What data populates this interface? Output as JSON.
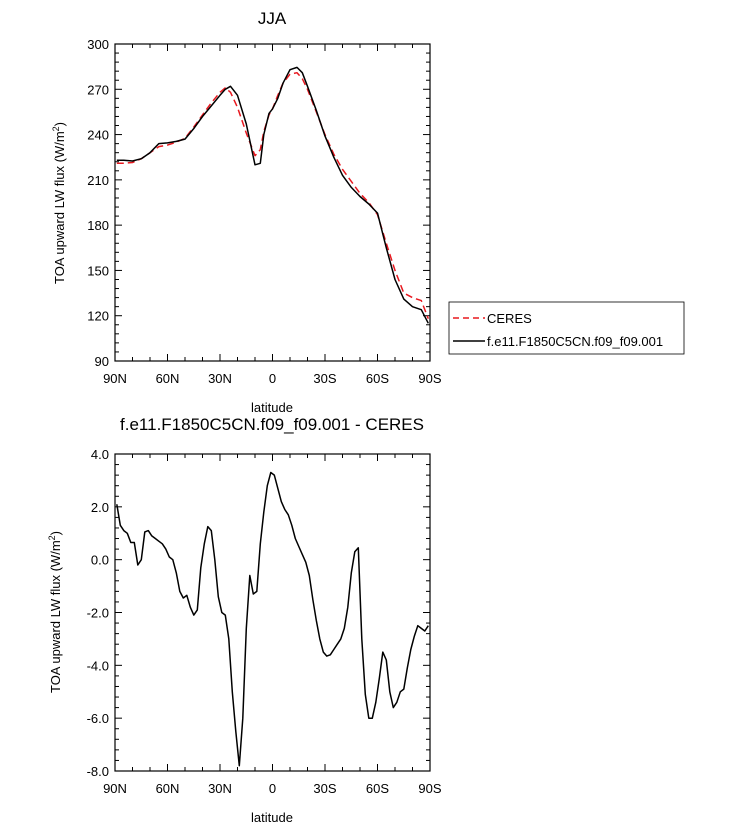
{
  "chart_data": [
    {
      "type": "line",
      "title": "JJA",
      "xlabel": "latitude",
      "ylabel": "TOA upward LW flux (W/m",
      "ylabel_sup": "2",
      "ylabel_close": ")",
      "ylim": [
        90,
        300
      ],
      "yticks": [
        90,
        120,
        150,
        180,
        210,
        240,
        270,
        300
      ],
      "ytick_labels": [
        "90",
        "120",
        "150",
        "180",
        "210",
        "240",
        "270",
        "300"
      ],
      "xlim": [
        90,
        -90
      ],
      "xticks": [
        90,
        60,
        30,
        0,
        -30,
        -60,
        -90
      ],
      "xtick_labels": [
        "90N",
        "60N",
        "30N",
        "0",
        "30S",
        "60S",
        "90S"
      ],
      "legend": {
        "placement": "right"
      },
      "series": [
        {
          "name": "CERES",
          "color": "#e8181f",
          "dash": "dashed",
          "x": [
            89,
            85,
            80,
            75,
            70,
            65,
            60,
            55,
            50,
            45,
            40,
            35,
            30,
            27,
            24,
            20,
            15,
            10,
            7,
            5,
            2,
            0,
            -3,
            -6,
            -10,
            -14,
            -17,
            -20,
            -25,
            -30,
            -35,
            -40,
            -45,
            -50,
            -55,
            -60,
            -65,
            -70,
            -75,
            -80,
            -85,
            -89
          ],
          "values": [
            221,
            221,
            221.5,
            224,
            228,
            232,
            233,
            235,
            237.5,
            245,
            253,
            261,
            268,
            271,
            268,
            258,
            241,
            226,
            230,
            242,
            253,
            257,
            266,
            274,
            280,
            281,
            277,
            270,
            255,
            240,
            227,
            217,
            209,
            201,
            195,
            187,
            168,
            150,
            135,
            132,
            130,
            118
          ]
        },
        {
          "name": "f.e11.F1850C5CN.f09_f09.001",
          "color": "#000000",
          "dash": "solid",
          "x": [
            89,
            85,
            80,
            75,
            70,
            65,
            60,
            55,
            50,
            45,
            40,
            35,
            30,
            27,
            24,
            20,
            15,
            10,
            7,
            5,
            2,
            0,
            -3,
            -6,
            -10,
            -14,
            -17,
            -20,
            -25,
            -30,
            -35,
            -40,
            -45,
            -50,
            -55,
            -60,
            -65,
            -70,
            -75,
            -80,
            -85,
            -89
          ],
          "values": [
            223,
            223,
            222.5,
            224,
            228,
            234,
            234.5,
            235.5,
            237,
            244,
            252,
            259,
            266,
            270,
            272,
            266,
            247,
            220,
            221,
            240,
            254,
            257,
            264,
            274,
            283,
            284.5,
            281,
            272,
            256,
            239,
            225,
            213,
            205,
            199,
            194,
            188,
            165,
            144,
            131,
            126,
            124,
            115
          ]
        }
      ]
    },
    {
      "type": "line",
      "title": "f.e11.F1850C5CN.f09_f09.001 - CERES",
      "xlabel": "latitude",
      "ylabel": "TOA upward LW flux (W/m",
      "ylabel_sup": "2",
      "ylabel_close": ")",
      "ylim": [
        -8,
        4
      ],
      "yticks": [
        -8,
        -6,
        -4,
        -2,
        0,
        2,
        4
      ],
      "ytick_labels": [
        "-8.0",
        "-6.0",
        "-4.0",
        "-2.0",
        "0.0",
        "2.0",
        "4.0"
      ],
      "xlim": [
        90,
        -90
      ],
      "xticks": [
        90,
        60,
        30,
        0,
        -30,
        -60,
        -90
      ],
      "xtick_labels": [
        "90N",
        "60N",
        "30N",
        "0",
        "30S",
        "60S",
        "90S"
      ],
      "series": [
        {
          "color": "#000000",
          "x": [
            89,
            87,
            85,
            83,
            81,
            79,
            77,
            75,
            73,
            71,
            69,
            67,
            65,
            63,
            61,
            59,
            57,
            55,
            53,
            51,
            49,
            47,
            45,
            43,
            41,
            39,
            37,
            35,
            33,
            31,
            29,
            27,
            25,
            23,
            21,
            19,
            17,
            15,
            13,
            11,
            9,
            7,
            5,
            3,
            1,
            -1,
            -3,
            -5,
            -7,
            -9,
            -11,
            -13,
            -15,
            -17,
            -19,
            -21,
            -23,
            -25,
            -27,
            -29,
            -31,
            -33,
            -35,
            -37,
            -39,
            -41,
            -43,
            -45,
            -47,
            -49,
            -51,
            -53,
            -55,
            -57,
            -59,
            -61,
            -63,
            -65,
            -67,
            -69,
            -71,
            -73,
            -75,
            -77,
            -79,
            -81,
            -83,
            -85,
            -87,
            -89
          ],
          "values": [
            2.1,
            1.3,
            1.1,
            1.0,
            0.65,
            0.65,
            -0.2,
            0.0,
            1.05,
            1.1,
            0.9,
            0.8,
            0.7,
            0.6,
            0.4,
            0.1,
            0.0,
            -0.5,
            -1.2,
            -1.45,
            -1.35,
            -1.8,
            -2.1,
            -1.9,
            -0.3,
            0.6,
            1.25,
            1.1,
            0.0,
            -1.4,
            -2.0,
            -2.1,
            -3.0,
            -5.0,
            -6.5,
            -7.8,
            -6.0,
            -2.6,
            -0.6,
            -1.3,
            -1.2,
            0.6,
            1.8,
            2.8,
            3.3,
            3.2,
            2.7,
            2.2,
            1.9,
            1.7,
            1.3,
            0.8,
            0.5,
            0.2,
            -0.1,
            -0.6,
            -1.5,
            -2.3,
            -3.0,
            -3.5,
            -3.65,
            -3.6,
            -3.4,
            -3.2,
            -3.0,
            -2.6,
            -1.8,
            -0.5,
            0.3,
            0.45,
            -3.0,
            -5.1,
            -6.0,
            -6.0,
            -5.4,
            -4.5,
            -3.5,
            -3.8,
            -5.0,
            -5.6,
            -5.4,
            -5.0,
            -4.9,
            -4.1,
            -3.4,
            -2.9,
            -2.5,
            -2.6,
            -2.7,
            -2.5
          ]
        }
      ]
    }
  ]
}
